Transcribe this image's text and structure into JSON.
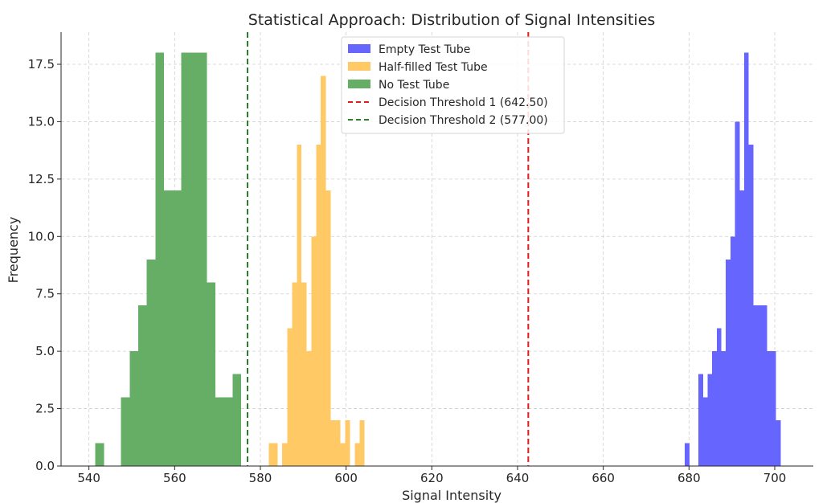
{
  "chart_data": {
    "type": "histogram",
    "title": "Statistical Approach: Distribution of Signal Intensities",
    "xlabel": "Signal Intensity",
    "ylabel": "Frequency",
    "xlim": [
      533.5,
      709
    ],
    "ylim": [
      0,
      18.9
    ],
    "xticks": [
      540,
      560,
      580,
      600,
      620,
      640,
      660,
      680,
      700
    ],
    "yticks": [
      0.0,
      2.5,
      5.0,
      7.5,
      10.0,
      12.5,
      15.0,
      17.5
    ],
    "ytick_labels": [
      "0.0",
      "2.5",
      "5.0",
      "7.5",
      "10.0",
      "12.5",
      "15.0",
      "17.5"
    ],
    "grid": true,
    "legend_position": "upper center",
    "series": [
      {
        "name": "Empty Test Tube",
        "color": "#6666ff",
        "bins": [
          {
            "x0": 679.0,
            "x1": 680.1,
            "count": 1
          },
          {
            "x0": 680.1,
            "x1": 681.1,
            "count": 0
          },
          {
            "x0": 681.1,
            "x1": 682.2,
            "count": 0
          },
          {
            "x0": 682.2,
            "x1": 683.3,
            "count": 4
          },
          {
            "x0": 683.3,
            "x1": 684.3,
            "count": 3
          },
          {
            "x0": 684.3,
            "x1": 685.4,
            "count": 4
          },
          {
            "x0": 685.4,
            "x1": 686.5,
            "count": 5
          },
          {
            "x0": 686.5,
            "x1": 687.5,
            "count": 6
          },
          {
            "x0": 687.5,
            "x1": 688.6,
            "count": 5
          },
          {
            "x0": 688.6,
            "x1": 689.7,
            "count": 9
          },
          {
            "x0": 689.7,
            "x1": 690.7,
            "count": 10
          },
          {
            "x0": 690.7,
            "x1": 691.8,
            "count": 15
          },
          {
            "x0": 691.8,
            "x1": 692.9,
            "count": 12
          },
          {
            "x0": 692.9,
            "x1": 693.9,
            "count": 18
          },
          {
            "x0": 693.9,
            "x1": 695.0,
            "count": 14
          },
          {
            "x0": 695.0,
            "x1": 696.1,
            "count": 7
          },
          {
            "x0": 696.1,
            "x1": 697.1,
            "count": 7
          },
          {
            "x0": 697.1,
            "x1": 698.2,
            "count": 7
          },
          {
            "x0": 698.2,
            "x1": 699.3,
            "count": 5
          },
          {
            "x0": 699.3,
            "x1": 700.3,
            "count": 5
          },
          {
            "x0": 700.3,
            "x1": 701.4,
            "count": 2
          }
        ]
      },
      {
        "name": "Half-filled Test Tube",
        "color": "#ffc966",
        "bins": [
          {
            "x0": 582.0,
            "x1": 584.0,
            "count": 1
          },
          {
            "x0": 584.0,
            "x1": 585.1,
            "count": 0
          },
          {
            "x0": 585.1,
            "x1": 586.3,
            "count": 1
          },
          {
            "x0": 586.3,
            "x1": 587.4,
            "count": 6
          },
          {
            "x0": 587.4,
            "x1": 588.5,
            "count": 8
          },
          {
            "x0": 588.5,
            "x1": 589.6,
            "count": 14
          },
          {
            "x0": 589.6,
            "x1": 590.8,
            "count": 8
          },
          {
            "x0": 590.8,
            "x1": 591.9,
            "count": 5
          },
          {
            "x0": 591.9,
            "x1": 593.0,
            "count": 10
          },
          {
            "x0": 593.0,
            "x1": 594.1,
            "count": 14
          },
          {
            "x0": 594.1,
            "x1": 595.3,
            "count": 17
          },
          {
            "x0": 595.3,
            "x1": 596.4,
            "count": 12
          },
          {
            "x0": 596.4,
            "x1": 597.5,
            "count": 2
          },
          {
            "x0": 597.5,
            "x1": 598.7,
            "count": 2
          },
          {
            "x0": 598.7,
            "x1": 599.8,
            "count": 1
          },
          {
            "x0": 599.8,
            "x1": 600.9,
            "count": 2
          },
          {
            "x0": 600.9,
            "x1": 602.0,
            "count": 0
          },
          {
            "x0": 602.0,
            "x1": 603.2,
            "count": 1
          },
          {
            "x0": 603.2,
            "x1": 604.3,
            "count": 2
          }
        ]
      },
      {
        "name": "No Test Tube",
        "color": "#66ad66",
        "bins": [
          {
            "x0": 541.5,
            "x1": 543.5,
            "count": 1
          },
          {
            "x0": 543.5,
            "x1": 545.5,
            "count": 0
          },
          {
            "x0": 545.5,
            "x1": 547.5,
            "count": 0
          },
          {
            "x0": 547.5,
            "x1": 549.5,
            "count": 3
          },
          {
            "x0": 549.5,
            "x1": 551.5,
            "count": 5
          },
          {
            "x0": 551.5,
            "x1": 553.5,
            "count": 7
          },
          {
            "x0": 553.5,
            "x1": 555.5,
            "count": 9
          },
          {
            "x0": 555.5,
            "x1": 557.5,
            "count": 18
          },
          {
            "x0": 557.5,
            "x1": 559.5,
            "count": 12
          },
          {
            "x0": 559.5,
            "x1": 561.5,
            "count": 12
          },
          {
            "x0": 561.5,
            "x1": 563.5,
            "count": 18
          },
          {
            "x0": 563.5,
            "x1": 565.5,
            "count": 18
          },
          {
            "x0": 565.5,
            "x1": 567.5,
            "count": 18
          },
          {
            "x0": 567.5,
            "x1": 569.5,
            "count": 8
          },
          {
            "x0": 569.5,
            "x1": 571.5,
            "count": 3
          },
          {
            "x0": 571.5,
            "x1": 573.5,
            "count": 3
          },
          {
            "x0": 573.5,
            "x1": 575.5,
            "count": 4
          }
        ]
      }
    ],
    "thresholds": [
      {
        "name": "Decision Threshold 1 (642.50)",
        "value": 642.5,
        "color": "#e41a1c"
      },
      {
        "name": "Decision Threshold 2 (577.00)",
        "value": 577.0,
        "color": "#2a7f2a"
      }
    ]
  }
}
